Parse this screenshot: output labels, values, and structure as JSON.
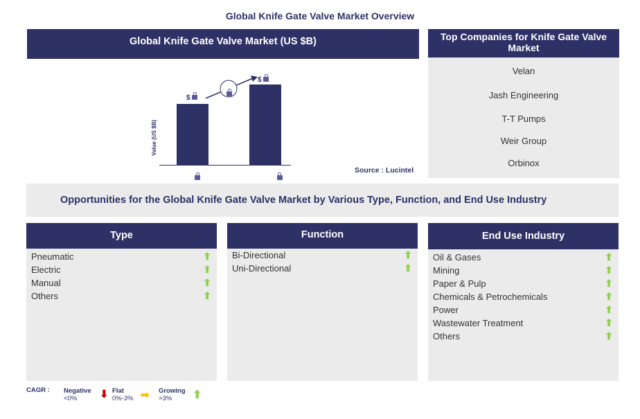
{
  "title": "Global Knife Gate Valve Market Overview",
  "market": {
    "header": "Global Knife Gate Valve Market (US $B)",
    "ylabel": "Value (US $B)",
    "bar_label_prefix": "$",
    "source": "Source : Lucintel"
  },
  "companies": {
    "header": "Top Companies for Knife Gate Valve Market",
    "items": [
      "Velan",
      "Jash Engineering",
      "T-T Pumps",
      "Weir Group",
      "Orbinox"
    ]
  },
  "opportunities": {
    "title": "Opportunities for the Global Knife Gate Valve Market by Various Type, Function, and End Use Industry"
  },
  "columns": [
    {
      "header": "Type",
      "items": [
        "Pneumatic",
        "Electric",
        "Manual",
        "Others"
      ]
    },
    {
      "header": "Function",
      "items": [
        "Bi-Directional",
        "Uni-Directional"
      ]
    },
    {
      "header": "End Use Industry",
      "items": [
        "Oil & Gases",
        "Mining",
        "Paper & Pulp",
        "Chemicals & Petrochemicals",
        "Power",
        "Wastewater Treatment",
        "Others"
      ]
    }
  ],
  "trend_icon": "green-up-arrow",
  "legend": {
    "label": "CAGR :",
    "negative": "Negative",
    "negative_range": "<0%",
    "flat": "Flat",
    "flat_range": "0%-3%",
    "growing": "Growing",
    "growing_range": ">3%"
  },
  "colors": {
    "navy": "#2d3166",
    "panel": "#ebebeb",
    "growing": "#92d050",
    "flat": "#ffc000",
    "negative": "#c00000"
  }
}
